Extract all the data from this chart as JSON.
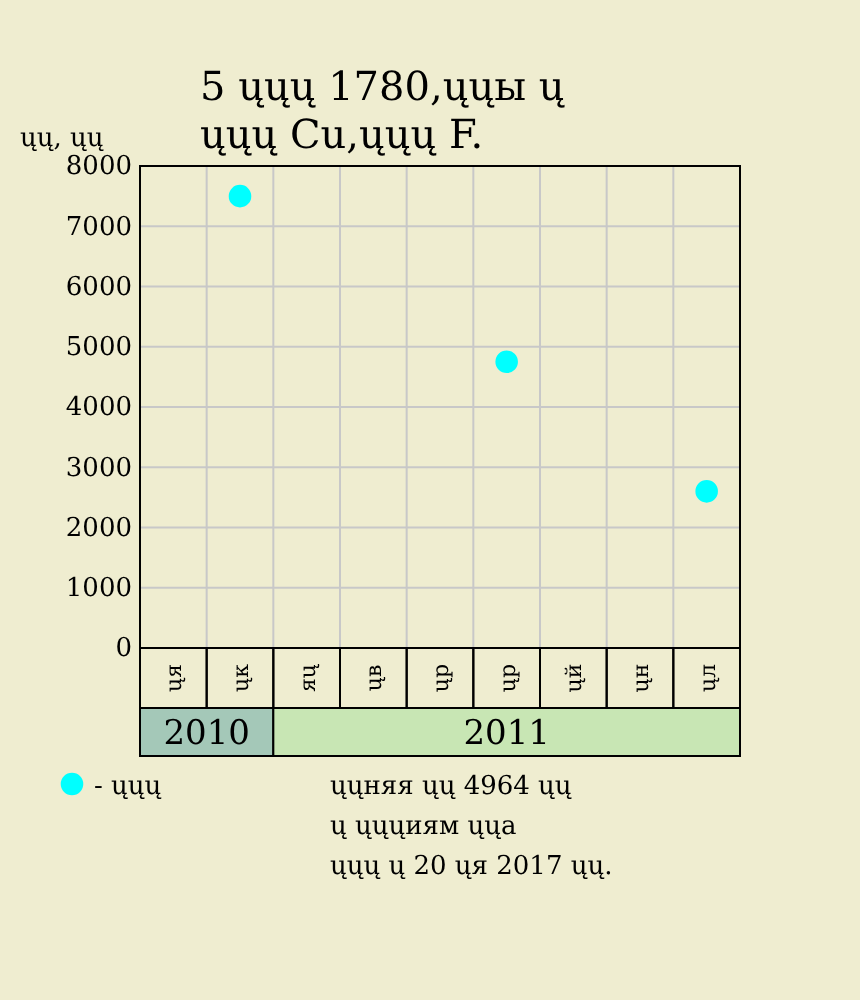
{
  "chart_data": {
    "type": "scatter",
    "title": "5 ųųų 1780,ųųы ų\nųųų Cu,ųųų F.",
    "ylabel": "ųų, ųų",
    "categories": [
      "ųя",
      "ųк",
      "яų",
      "ųв",
      "ųр",
      "ųр",
      "ųй",
      "ųн",
      "ųл"
    ],
    "series": [
      {
        "name": "- ųųų",
        "color": "#00ffff",
        "values": [
          null,
          7500,
          null,
          null,
          null,
          4750,
          null,
          null,
          2600
        ]
      }
    ],
    "ylim": [
      0,
      8000
    ],
    "yticks": [
      0,
      1000,
      2000,
      3000,
      4000,
      5000,
      6000,
      7000,
      8000
    ],
    "grid": true,
    "marker": "circle",
    "legend": "bottom left",
    "annotations": [
      "2010",
      "2011",
      "ųųняя ųų 4964 ųų\nų ųųųиям ųųа\nųųų ų 20 ųя 2017 ųų."
    ]
  }
}
